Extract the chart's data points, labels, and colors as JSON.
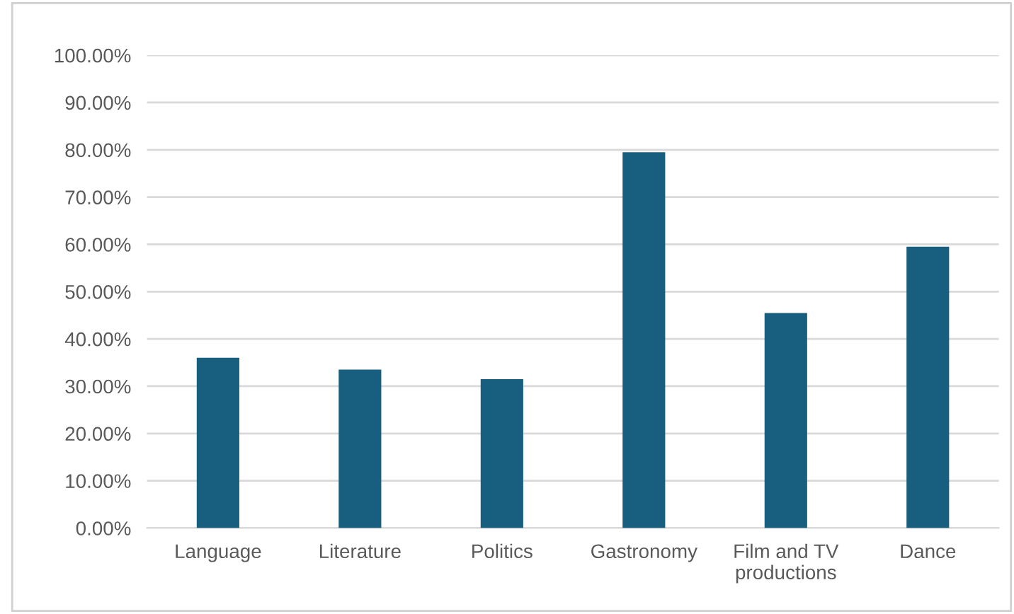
{
  "chart_data": {
    "type": "bar",
    "categories": [
      "Language",
      "Literature",
      "Politics",
      "Gastronomy",
      "Film and TV\nproductions",
      "Dance"
    ],
    "values": [
      36,
      33.5,
      31.5,
      79.5,
      45.5,
      59.5
    ],
    "color": "#175e7f",
    "ylim": [
      0,
      100
    ],
    "yticks": [
      {
        "value": 0,
        "label": "0.00%"
      },
      {
        "value": 10,
        "label": "10.00%"
      },
      {
        "value": 20,
        "label": "20.00%"
      },
      {
        "value": 30,
        "label": "30.00%"
      },
      {
        "value": 40,
        "label": "40.00%"
      },
      {
        "value": 50,
        "label": "50.00%"
      },
      {
        "value": 60,
        "label": "60.00%"
      },
      {
        "value": 70,
        "label": "70.00%"
      },
      {
        "value": 80,
        "label": "80.00%"
      },
      {
        "value": 90,
        "label": "90.00%"
      },
      {
        "value": 100,
        "label": "100.00%"
      }
    ],
    "grid": "y"
  }
}
